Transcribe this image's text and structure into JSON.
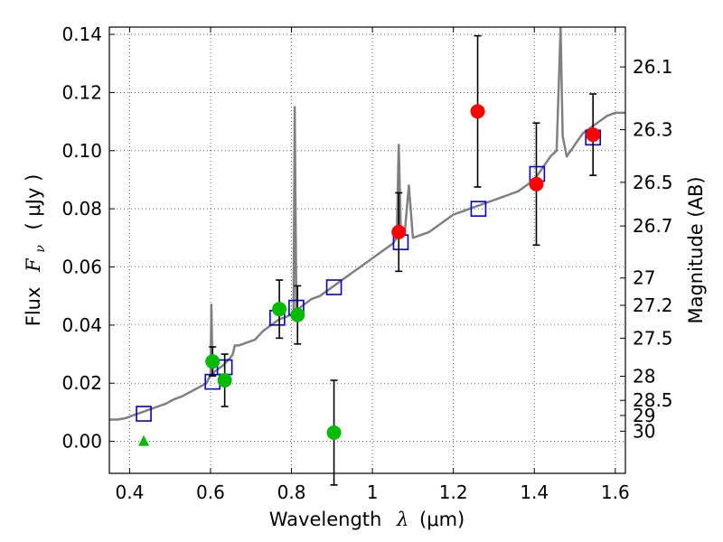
{
  "chart_data": {
    "type": "scatter",
    "title": "",
    "xlabel_text": "Wavelength",
    "xlabel_symbol": "λ",
    "xlabel_unit": "(μm)",
    "ylabel_text": "Flux",
    "ylabel_symbol": "F",
    "ylabel_subscript": "ν",
    "ylabel_unit": "( μJy )",
    "y2label": "Magnitude (AB)",
    "xlim": [
      0.35,
      1.625
    ],
    "ylim": [
      -0.011,
      0.1425
    ],
    "grid": true,
    "x_ticks": [
      0.4,
      0.6,
      0.8,
      1,
      1.2,
      1.4,
      1.6
    ],
    "x_tick_labels": [
      "0.4",
      "0.6",
      "0.8",
      "1",
      "1.2",
      "1.4",
      "1.6"
    ],
    "y_ticks": [
      0.0,
      0.02,
      0.04,
      0.06,
      0.08,
      0.1,
      0.12,
      0.14
    ],
    "y_tick_labels": [
      "0.00",
      "0.02",
      "0.04",
      "0.06",
      "0.08",
      "0.10",
      "0.12",
      "0.14"
    ],
    "mag_ticks": [
      {
        "label": "26.1",
        "flux": 0.1288
      },
      {
        "label": "26.3",
        "flux": 0.1072
      },
      {
        "label": "26.5",
        "flux": 0.0891
      },
      {
        "label": "26.7",
        "flux": 0.0741
      },
      {
        "label": "27",
        "flux": 0.0562
      },
      {
        "label": "27.2",
        "flux": 0.0468
      },
      {
        "label": "27.5",
        "flux": 0.0355
      },
      {
        "label": "28",
        "flux": 0.0224
      },
      {
        "label": "28.5",
        "flux": 0.0141
      },
      {
        "label": "29",
        "flux": 0.0089
      },
      {
        "label": "30",
        "flux": 0.0035
      }
    ],
    "series": [
      {
        "kind": "line",
        "color": "#808080",
        "points": [
          [
            0.35,
            0.0075
          ],
          [
            0.37,
            0.0075
          ],
          [
            0.39,
            0.008
          ],
          [
            0.41,
            0.009
          ],
          [
            0.43,
            0.01
          ],
          [
            0.45,
            0.011
          ],
          [
            0.47,
            0.012
          ],
          [
            0.49,
            0.013
          ],
          [
            0.51,
            0.0145
          ],
          [
            0.53,
            0.0155
          ],
          [
            0.55,
            0.017
          ],
          [
            0.57,
            0.0185
          ],
          [
            0.59,
            0.02
          ],
          [
            0.6,
            0.023
          ],
          [
            0.602,
            0.047
          ],
          [
            0.605,
            0.023
          ],
          [
            0.61,
            0.024
          ],
          [
            0.63,
            0.026
          ],
          [
            0.65,
            0.029
          ],
          [
            0.655,
            0.03
          ],
          [
            0.66,
            0.033
          ],
          [
            0.67,
            0.033
          ],
          [
            0.69,
            0.034
          ],
          [
            0.71,
            0.035
          ],
          [
            0.73,
            0.038
          ],
          [
            0.75,
            0.04
          ],
          [
            0.77,
            0.042
          ],
          [
            0.79,
            0.043
          ],
          [
            0.805,
            0.044
          ],
          [
            0.808,
            0.115
          ],
          [
            0.812,
            0.045
          ],
          [
            0.83,
            0.047
          ],
          [
            0.85,
            0.049
          ],
          [
            0.87,
            0.05
          ],
          [
            0.89,
            0.052
          ],
          [
            0.91,
            0.054
          ],
          [
            0.93,
            0.056
          ],
          [
            0.95,
            0.058
          ],
          [
            0.97,
            0.06
          ],
          [
            0.99,
            0.062
          ],
          [
            1.01,
            0.064
          ],
          [
            1.03,
            0.066
          ],
          [
            1.05,
            0.068
          ],
          [
            1.06,
            0.07
          ],
          [
            1.065,
            0.102
          ],
          [
            1.07,
            0.074
          ],
          [
            1.08,
            0.072
          ],
          [
            1.09,
            0.088
          ],
          [
            1.1,
            0.07
          ],
          [
            1.12,
            0.071
          ],
          [
            1.14,
            0.072
          ],
          [
            1.16,
            0.074
          ],
          [
            1.18,
            0.076
          ],
          [
            1.2,
            0.078
          ],
          [
            1.22,
            0.079
          ],
          [
            1.24,
            0.08
          ],
          [
            1.26,
            0.081
          ],
          [
            1.28,
            0.082
          ],
          [
            1.3,
            0.083
          ],
          [
            1.32,
            0.084
          ],
          [
            1.34,
            0.085
          ],
          [
            1.36,
            0.086
          ],
          [
            1.38,
            0.088
          ],
          [
            1.4,
            0.09
          ],
          [
            1.42,
            0.094
          ],
          [
            1.44,
            0.098
          ],
          [
            1.455,
            0.1
          ],
          [
            1.465,
            0.142
          ],
          [
            1.47,
            0.105
          ],
          [
            1.48,
            0.098
          ],
          [
            1.5,
            0.102
          ],
          [
            1.52,
            0.106
          ],
          [
            1.54,
            0.108
          ],
          [
            1.56,
            0.11
          ],
          [
            1.58,
            0.112
          ],
          [
            1.6,
            0.113
          ],
          [
            1.625,
            0.113
          ]
        ]
      },
      {
        "kind": "squares",
        "color": "#0000cc",
        "points": [
          [
            0.435,
            0.0095
          ],
          [
            0.605,
            0.0205
          ],
          [
            0.635,
            0.0255
          ],
          [
            0.765,
            0.0425
          ],
          [
            0.812,
            0.046
          ],
          [
            0.905,
            0.053
          ],
          [
            1.07,
            0.0685
          ],
          [
            1.262,
            0.08
          ],
          [
            1.407,
            0.092
          ],
          [
            1.545,
            0.1045
          ]
        ]
      },
      {
        "kind": "circles",
        "color": "#00bb00",
        "points": [
          {
            "x": 0.605,
            "y": 0.0275,
            "err": 0.005
          },
          {
            "x": 0.635,
            "y": 0.021,
            "err": 0.009
          },
          {
            "x": 0.77,
            "y": 0.0455,
            "err": 0.01
          },
          {
            "x": 0.815,
            "y": 0.0435,
            "err": 0.01
          },
          {
            "x": 0.905,
            "y": 0.003,
            "err": 0.018
          }
        ]
      },
      {
        "kind": "circles",
        "color": "#ff0000",
        "points": [
          {
            "x": 1.065,
            "y": 0.072,
            "err": 0.0135
          },
          {
            "x": 1.26,
            "y": 0.1135,
            "err": 0.026
          },
          {
            "x": 1.405,
            "y": 0.0885,
            "err": 0.021
          },
          {
            "x": 1.545,
            "y": 0.1055,
            "err": 0.014
          }
        ]
      },
      {
        "kind": "triangles",
        "color": "#00bb00",
        "points": [
          [
            0.435,
            0.0
          ]
        ]
      }
    ]
  }
}
